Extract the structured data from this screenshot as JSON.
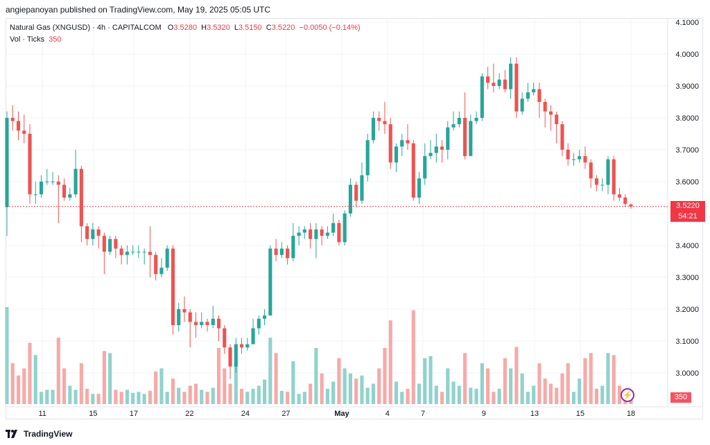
{
  "header": {
    "publisher": "angiepanoyan published on TradingView.com, May 19, 2025 05:05 UTC"
  },
  "legend": {
    "instrument": "Natural Gas (XNGUSD) · 4h · CAPITALCOM",
    "o_label": "O",
    "o_value": "3.5280",
    "h_label": "H",
    "h_value": "3.5320",
    "l_label": "L",
    "l_value": "3.5150",
    "c_label": "C",
    "c_value": "3.5220",
    "change": "−0.0050 (−0.14%)",
    "vol_label": "Vol · Ticks",
    "vol_value": "350"
  },
  "price_axis": {
    "labels": [
      "4.1000",
      "4.0000",
      "3.9000",
      "3.8000",
      "3.7000",
      "3.6000",
      "3.5000",
      "3.4000",
      "3.3000",
      "3.2000",
      "3.1000",
      "3.0000"
    ],
    "last_price": "3.5220",
    "countdown": "54:21",
    "last_volume": "350"
  },
  "time_axis": {
    "labels": [
      "11",
      "15",
      "17",
      "22",
      "24",
      "27",
      "May",
      "4",
      "7",
      "9",
      "13",
      "15",
      "18"
    ]
  },
  "footer": {
    "brand": "TradingView"
  },
  "colors": {
    "up": "#26a69a",
    "down": "#ef5350",
    "up_volume": "#8fd3cc",
    "down_volume": "#f7a9a7",
    "last_price_line": "#f23645"
  },
  "chart_data": {
    "type": "candlestick",
    "title": "Natural Gas (XNGUSD) · 4h · CAPITALCOM",
    "ylim": [
      2.95,
      4.13
    ],
    "grid": true,
    "x_tick_labels": [
      "11",
      "15",
      "17",
      "22",
      "24",
      "27",
      "May",
      "4",
      "7",
      "9",
      "13",
      "15",
      "18"
    ],
    "y_tick_labels": [
      "4.1000",
      "4.0000",
      "3.9000",
      "3.8000",
      "3.7000",
      "3.6000",
      "3.5000",
      "3.4000",
      "3.3000",
      "3.2000",
      "3.1000",
      "3.0000"
    ],
    "candles": [
      [
        3.52,
        3.8,
        3.82,
        3.43,
        95
      ],
      [
        3.8,
        3.79,
        3.84,
        3.76,
        40
      ],
      [
        3.79,
        3.76,
        3.82,
        3.73,
        28
      ],
      [
        3.76,
        3.75,
        3.81,
        3.72,
        35
      ],
      [
        3.75,
        3.56,
        3.78,
        3.53,
        60
      ],
      [
        3.56,
        3.56,
        3.6,
        3.53,
        48
      ],
      [
        3.56,
        3.6,
        3.62,
        3.55,
        12
      ],
      [
        3.6,
        3.6,
        3.64,
        3.59,
        14
      ],
      [
        3.6,
        3.6,
        3.63,
        3.59,
        14
      ],
      [
        3.6,
        3.59,
        3.62,
        3.47,
        65
      ],
      [
        3.59,
        3.55,
        3.61,
        3.54,
        35
      ],
      [
        3.55,
        3.56,
        3.58,
        3.54,
        18
      ],
      [
        3.56,
        3.64,
        3.7,
        3.55,
        14
      ],
      [
        3.64,
        3.46,
        3.65,
        3.41,
        40
      ],
      [
        3.46,
        3.42,
        3.47,
        3.4,
        15
      ],
      [
        3.42,
        3.45,
        3.47,
        3.4,
        10
      ],
      [
        3.45,
        3.43,
        3.46,
        3.39,
        10
      ],
      [
        3.43,
        3.38,
        3.44,
        3.31,
        52
      ],
      [
        3.38,
        3.42,
        3.43,
        3.37,
        50
      ],
      [
        3.42,
        3.39,
        3.43,
        3.36,
        14
      ],
      [
        3.39,
        3.37,
        3.4,
        3.34,
        12
      ],
      [
        3.37,
        3.38,
        3.4,
        3.34,
        14
      ],
      [
        3.38,
        3.38,
        3.4,
        3.37,
        11
      ],
      [
        3.38,
        3.38,
        3.4,
        3.36,
        12
      ],
      [
        3.38,
        3.38,
        3.39,
        3.34,
        10
      ],
      [
        3.38,
        3.37,
        3.46,
        3.3,
        13
      ],
      [
        3.37,
        3.31,
        3.38,
        3.29,
        32
      ],
      [
        3.31,
        3.33,
        3.36,
        3.3,
        35
      ],
      [
        3.33,
        3.39,
        3.4,
        3.32,
        12
      ],
      [
        3.39,
        3.15,
        3.4,
        3.12,
        25
      ],
      [
        3.15,
        3.2,
        3.22,
        3.13,
        16
      ],
      [
        3.2,
        3.19,
        3.24,
        3.16,
        12
      ],
      [
        3.19,
        3.16,
        3.2,
        3.08,
        18
      ],
      [
        3.16,
        3.15,
        3.19,
        3.11,
        20
      ],
      [
        3.15,
        3.16,
        3.19,
        3.14,
        14
      ],
      [
        3.16,
        3.15,
        3.17,
        3.13,
        12
      ],
      [
        3.15,
        3.17,
        3.21,
        3.14,
        16
      ],
      [
        3.17,
        3.14,
        3.18,
        3.1,
        55
      ],
      [
        3.14,
        3.08,
        3.15,
        3.06,
        35
      ],
      [
        3.08,
        3.02,
        3.09,
        2.98,
        20
      ],
      [
        3.02,
        3.09,
        3.11,
        3.0,
        40
      ],
      [
        3.09,
        3.08,
        3.11,
        3.06,
        15
      ],
      [
        3.08,
        3.09,
        3.11,
        3.07,
        12
      ],
      [
        3.09,
        3.14,
        3.17,
        3.09,
        15
      ],
      [
        3.14,
        3.17,
        3.18,
        3.12,
        18
      ],
      [
        3.17,
        3.18,
        3.2,
        3.15,
        24
      ],
      [
        3.18,
        3.39,
        3.4,
        3.18,
        65
      ],
      [
        3.39,
        3.37,
        3.42,
        3.35,
        50
      ],
      [
        3.37,
        3.39,
        3.41,
        3.36,
        13
      ],
      [
        3.39,
        3.36,
        3.4,
        3.34,
        12
      ],
      [
        3.36,
        3.43,
        3.47,
        3.35,
        42
      ],
      [
        3.43,
        3.44,
        3.46,
        3.4,
        10
      ],
      [
        3.44,
        3.45,
        3.46,
        3.42,
        12
      ],
      [
        3.45,
        3.42,
        3.47,
        3.39,
        20
      ],
      [
        3.42,
        3.45,
        3.47,
        3.36,
        55
      ],
      [
        3.45,
        3.43,
        3.46,
        3.4,
        30
      ],
      [
        3.43,
        3.44,
        3.46,
        3.42,
        15
      ],
      [
        3.44,
        3.47,
        3.5,
        3.43,
        22
      ],
      [
        3.47,
        3.41,
        3.48,
        3.4,
        45
      ],
      [
        3.41,
        3.5,
        3.51,
        3.4,
        35
      ],
      [
        3.5,
        3.59,
        3.61,
        3.49,
        30
      ],
      [
        3.59,
        3.54,
        3.6,
        3.52,
        25
      ],
      [
        3.54,
        3.62,
        3.66,
        3.53,
        28
      ],
      [
        3.62,
        3.73,
        3.75,
        3.6,
        16
      ],
      [
        3.73,
        3.8,
        3.82,
        3.72,
        20
      ],
      [
        3.8,
        3.79,
        3.82,
        3.76,
        35
      ],
      [
        3.79,
        3.78,
        3.85,
        3.75,
        55
      ],
      [
        3.78,
        3.66,
        3.8,
        3.64,
        82
      ],
      [
        3.66,
        3.71,
        3.72,
        3.63,
        22
      ],
      [
        3.71,
        3.73,
        3.75,
        3.68,
        12
      ],
      [
        3.73,
        3.72,
        3.78,
        3.7,
        15
      ],
      [
        3.72,
        3.55,
        3.73,
        3.54,
        92
      ],
      [
        3.55,
        3.61,
        3.63,
        3.53,
        20
      ],
      [
        3.61,
        3.68,
        3.72,
        3.59,
        45
      ],
      [
        3.68,
        3.69,
        3.73,
        3.67,
        47
      ],
      [
        3.69,
        3.71,
        3.75,
        3.66,
        18
      ],
      [
        3.71,
        3.7,
        3.73,
        3.66,
        12
      ],
      [
        3.7,
        3.77,
        3.79,
        3.67,
        35
      ],
      [
        3.77,
        3.78,
        3.82,
        3.76,
        22
      ],
      [
        3.78,
        3.8,
        3.82,
        3.77,
        18
      ],
      [
        3.8,
        3.68,
        3.88,
        3.67,
        50
      ],
      [
        3.68,
        3.79,
        3.81,
        3.72,
        16
      ],
      [
        3.79,
        3.8,
        3.82,
        3.78,
        15
      ],
      [
        3.8,
        3.93,
        3.94,
        3.79,
        40
      ],
      [
        3.93,
        3.91,
        3.96,
        3.89,
        35
      ],
      [
        3.91,
        3.9,
        3.97,
        3.88,
        12
      ],
      [
        3.9,
        3.92,
        3.94,
        3.89,
        15
      ],
      [
        3.92,
        3.89,
        3.95,
        3.88,
        45
      ],
      [
        3.89,
        3.97,
        3.99,
        3.86,
        35
      ],
      [
        3.97,
        3.82,
        3.99,
        3.8,
        56
      ],
      [
        3.82,
        3.86,
        3.88,
        3.81,
        30
      ],
      [
        3.86,
        3.88,
        3.91,
        3.85,
        12
      ],
      [
        3.88,
        3.89,
        3.91,
        3.87,
        18
      ],
      [
        3.89,
        3.85,
        3.91,
        3.8,
        40
      ],
      [
        3.85,
        3.82,
        3.86,
        3.77,
        25
      ],
      [
        3.82,
        3.81,
        3.84,
        3.76,
        20
      ],
      [
        3.81,
        3.78,
        3.82,
        3.72,
        16
      ],
      [
        3.78,
        3.7,
        3.79,
        3.68,
        30
      ],
      [
        3.7,
        3.67,
        3.72,
        3.65,
        40
      ],
      [
        3.67,
        3.67,
        3.69,
        3.65,
        12
      ],
      [
        3.67,
        3.68,
        3.7,
        3.66,
        25
      ],
      [
        3.68,
        3.66,
        3.71,
        3.64,
        45
      ],
      [
        3.66,
        3.61,
        3.67,
        3.58,
        50
      ],
      [
        3.61,
        3.59,
        3.62,
        3.57,
        15
      ],
      [
        3.59,
        3.59,
        3.61,
        3.57,
        18
      ],
      [
        3.59,
        3.67,
        3.68,
        3.56,
        50
      ],
      [
        3.67,
        3.56,
        3.68,
        3.54,
        48
      ],
      [
        3.56,
        3.55,
        3.58,
        3.54,
        18
      ],
      [
        3.55,
        3.53,
        3.56,
        3.52,
        15
      ],
      [
        3.528,
        3.522,
        3.532,
        3.515,
        12
      ]
    ]
  }
}
